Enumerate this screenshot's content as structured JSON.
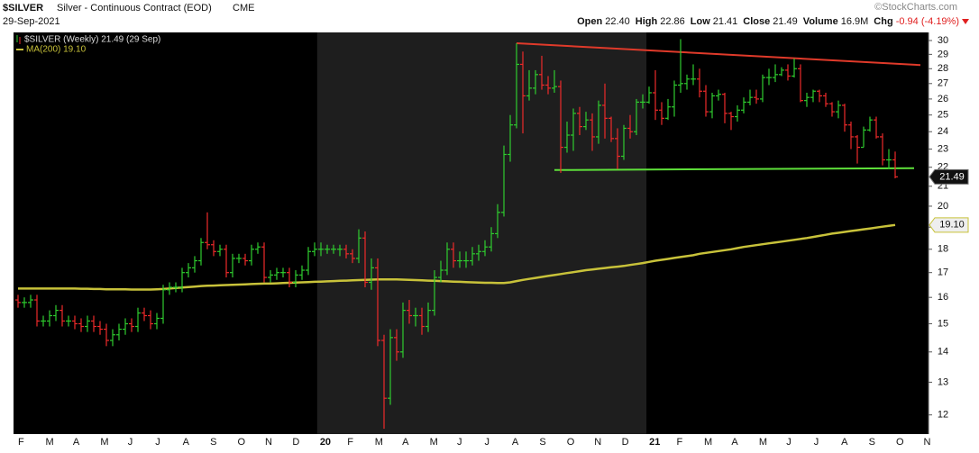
{
  "chart_data": {
    "type": "ohlc",
    "header": {
      "symbol": "$SILVER",
      "description": "Silver - Continuous Contract (EOD)",
      "exchange": "CME",
      "date": "29-Sep-2021",
      "copyright": "©StockCharts.com",
      "quote": [
        {
          "label": "Open",
          "value": "22.40"
        },
        {
          "label": "High",
          "value": "22.86"
        },
        {
          "label": "Low",
          "value": "21.41"
        },
        {
          "label": "Close",
          "value": "21.49"
        },
        {
          "label": "Volume",
          "value": "16.9M"
        },
        {
          "label": "Chg",
          "value": "-0.94 (-4.19%)"
        }
      ]
    },
    "log_scale": true,
    "ylim": [
      11.45,
      30.6
    ],
    "yticks": [
      12,
      13,
      14,
      15,
      16,
      17,
      18,
      19,
      20,
      21,
      22,
      23,
      24,
      25,
      26,
      27,
      28,
      29,
      30
    ],
    "xtick_labels": [
      "F",
      "M",
      "A",
      "M",
      "J",
      "J",
      "A",
      "S",
      "O",
      "N",
      "D",
      "20",
      "F",
      "M",
      "A",
      "M",
      "J",
      "J",
      "A",
      "S",
      "O",
      "N",
      "D",
      "21",
      "F",
      "M",
      "A",
      "M",
      "J",
      "J",
      "A",
      "S",
      "O",
      "N"
    ],
    "series": [
      {
        "name": "$SILVER (Weekly) 21.49 (29 Sep)",
        "up_color": "#2ecc2e",
        "down_color": "#ee2a2a",
        "open": [
          15.9,
          15.8,
          15.8,
          15.9,
          15.1,
          15.1,
          15.3,
          15.5,
          15.1,
          15.1,
          15.0,
          14.9,
          15.1,
          14.9,
          14.8,
          14.4,
          14.6,
          14.8,
          15.0,
          14.9,
          15.4,
          15.3,
          15.0,
          15.2,
          16.3,
          16.4,
          16.4,
          17.0,
          17.2,
          17.5,
          18.3,
          18.2,
          17.9,
          18.0,
          17.0,
          17.6,
          17.6,
          17.5,
          18.0,
          18.1,
          16.8,
          16.9,
          17.0,
          17.0,
          16.6,
          16.9,
          17.1,
          17.9,
          18.0,
          18.0,
          18.0,
          18.0,
          18.0,
          17.8,
          17.6,
          18.5,
          16.6,
          17.2,
          14.4,
          12.5,
          14.5,
          14.0,
          15.5,
          15.3,
          15.3,
          14.9,
          15.5,
          16.8,
          17.1,
          18.0,
          17.5,
          17.5,
          17.5,
          17.8,
          17.9,
          18.1,
          18.7,
          19.7,
          22.7,
          24.4,
          28.3,
          26.2,
          26.7,
          27.6,
          26.9,
          26.7,
          26.8,
          23.1,
          23.8,
          25.1,
          24.3,
          24.7,
          23.7,
          25.6,
          24.8,
          23.6,
          22.6,
          24.2,
          24.0,
          25.8,
          25.8,
          26.4,
          25.3,
          24.8,
          25.5,
          26.9,
          27.0,
          27.3,
          27.3,
          26.5,
          25.2,
          26.2,
          26.3,
          25.1,
          24.9,
          25.3,
          25.8,
          26.1,
          26.0,
          27.4,
          27.4,
          27.6,
          27.9,
          27.5,
          28.0,
          25.9,
          26.1,
          26.5,
          26.2,
          25.7,
          25.2,
          25.6,
          24.4,
          23.7,
          23.1,
          24.1,
          24.7,
          23.7,
          22.4,
          22.4
        ],
        "high": [
          16.1,
          16.0,
          16.1,
          16.1,
          15.3,
          15.5,
          15.7,
          15.7,
          15.3,
          15.3,
          15.2,
          15.3,
          15.3,
          15.1,
          15.0,
          14.8,
          15.0,
          15.2,
          15.2,
          15.6,
          15.6,
          15.5,
          15.4,
          16.5,
          16.6,
          16.6,
          17.2,
          17.4,
          17.7,
          18.5,
          19.7,
          18.4,
          18.2,
          18.2,
          17.8,
          17.8,
          17.8,
          18.2,
          18.3,
          18.3,
          17.1,
          17.2,
          17.2,
          17.2,
          17.1,
          17.3,
          18.1,
          18.3,
          18.3,
          18.2,
          18.2,
          18.2,
          18.2,
          18.0,
          18.9,
          18.8,
          17.6,
          17.6,
          14.6,
          14.8,
          14.8,
          15.8,
          15.9,
          15.6,
          15.6,
          15.8,
          17.1,
          17.5,
          18.3,
          18.3,
          17.9,
          17.9,
          18.1,
          18.2,
          18.4,
          19.0,
          20.1,
          23.2,
          25.0,
          29.8,
          29.2,
          27.9,
          27.9,
          28.9,
          27.5,
          27.9,
          27.2,
          24.6,
          25.4,
          25.5,
          25.2,
          25.1,
          25.9,
          27.0,
          24.9,
          24.2,
          24.4,
          25.0,
          26.0,
          26.3,
          26.8,
          27.9,
          25.8,
          26.0,
          27.2,
          30.1,
          27.6,
          28.3,
          28.0,
          26.9,
          26.4,
          26.6,
          26.4,
          25.2,
          25.6,
          26.1,
          26.6,
          26.6,
          27.6,
          28.0,
          28.3,
          28.1,
          28.3,
          28.7,
          28.3,
          26.4,
          26.6,
          26.6,
          26.4,
          25.8,
          25.9,
          25.7,
          24.6,
          23.8,
          24.3,
          24.9,
          24.9,
          23.9,
          23.0,
          22.86
        ],
        "low": [
          15.6,
          15.6,
          15.6,
          14.9,
          14.9,
          14.9,
          15.1,
          14.9,
          14.9,
          14.8,
          14.7,
          14.7,
          14.7,
          14.6,
          14.2,
          14.2,
          14.4,
          14.6,
          14.7,
          14.7,
          15.1,
          14.8,
          14.8,
          15.0,
          16.1,
          16.2,
          16.2,
          16.8,
          17.0,
          17.3,
          18.0,
          17.7,
          17.7,
          16.8,
          16.8,
          17.4,
          17.3,
          17.3,
          17.8,
          16.6,
          16.6,
          16.7,
          16.8,
          16.4,
          16.4,
          16.7,
          16.9,
          17.7,
          17.7,
          17.8,
          17.8,
          17.7,
          17.6,
          17.4,
          17.4,
          16.4,
          16.3,
          14.2,
          11.6,
          12.3,
          13.7,
          13.8,
          15.0,
          14.9,
          14.6,
          14.7,
          15.3,
          16.6,
          16.9,
          17.2,
          17.2,
          17.2,
          17.3,
          17.5,
          17.7,
          17.9,
          18.5,
          19.5,
          22.3,
          24.2,
          23.9,
          25.9,
          26.3,
          26.6,
          26.3,
          26.4,
          21.7,
          22.8,
          22.9,
          23.8,
          24.1,
          22.9,
          23.3,
          23.6,
          23.4,
          21.9,
          22.4,
          23.6,
          23.8,
          25.4,
          25.7,
          24.7,
          24.4,
          24.7,
          24.9,
          26.4,
          26.6,
          26.9,
          26.1,
          24.9,
          24.8,
          25.9,
          24.5,
          24.1,
          24.6,
          25.1,
          25.6,
          25.7,
          25.8,
          26.9,
          27.1,
          27.5,
          27.2,
          27.4,
          25.8,
          25.5,
          25.8,
          25.8,
          25.5,
          24.9,
          24.8,
          24.0,
          23.0,
          22.2,
          23.1,
          24.0,
          23.6,
          22.1,
          21.9,
          21.41
        ],
        "close": [
          15.8,
          15.8,
          15.9,
          15.1,
          15.1,
          15.3,
          15.5,
          15.1,
          15.1,
          15.0,
          14.9,
          15.1,
          14.9,
          14.8,
          14.4,
          14.6,
          14.8,
          15.0,
          14.9,
          15.4,
          15.3,
          15.0,
          15.2,
          16.3,
          16.4,
          16.4,
          17.0,
          17.2,
          17.5,
          18.3,
          18.2,
          17.9,
          18.0,
          17.0,
          17.6,
          17.6,
          17.5,
          18.0,
          18.1,
          16.8,
          16.9,
          17.0,
          17.0,
          16.6,
          16.9,
          17.1,
          17.9,
          18.0,
          18.0,
          18.0,
          18.0,
          18.0,
          17.8,
          17.6,
          18.5,
          16.6,
          17.2,
          14.4,
          12.5,
          14.5,
          14.0,
          15.5,
          15.3,
          15.3,
          14.9,
          15.5,
          16.8,
          17.1,
          18.0,
          17.5,
          17.5,
          17.5,
          17.8,
          17.9,
          18.1,
          18.7,
          19.7,
          22.7,
          24.4,
          28.3,
          26.2,
          26.7,
          27.6,
          26.9,
          26.7,
          26.8,
          23.1,
          23.8,
          25.1,
          24.3,
          24.7,
          23.7,
          25.6,
          24.8,
          23.6,
          22.6,
          24.2,
          24.0,
          25.8,
          25.8,
          26.4,
          25.3,
          24.8,
          25.5,
          26.9,
          27.0,
          27.3,
          27.3,
          26.5,
          25.2,
          26.2,
          26.3,
          25.1,
          24.9,
          25.3,
          25.8,
          26.1,
          26.0,
          27.4,
          27.4,
          27.6,
          27.9,
          27.5,
          28.0,
          25.9,
          26.1,
          26.5,
          26.2,
          25.7,
          25.2,
          25.6,
          24.4,
          23.7,
          23.1,
          24.1,
          24.7,
          23.7,
          22.4,
          22.4,
          21.49
        ]
      },
      {
        "name": "MA(200) 19.10",
        "color": "#c8c23a",
        "last_value_label": "19.10",
        "values": [
          16.35,
          16.35,
          16.35,
          16.35,
          16.35,
          16.35,
          16.35,
          16.35,
          16.35,
          16.35,
          16.34,
          16.34,
          16.33,
          16.33,
          16.32,
          16.32,
          16.32,
          16.32,
          16.31,
          16.31,
          16.31,
          16.31,
          16.32,
          16.33,
          16.35,
          16.37,
          16.39,
          16.41,
          16.43,
          16.45,
          16.46,
          16.47,
          16.48,
          16.49,
          16.5,
          16.51,
          16.52,
          16.53,
          16.54,
          16.55,
          16.55,
          16.56,
          16.57,
          16.58,
          16.59,
          16.6,
          16.61,
          16.62,
          16.63,
          16.64,
          16.65,
          16.66,
          16.67,
          16.68,
          16.69,
          16.7,
          16.71,
          16.72,
          16.72,
          16.72,
          16.72,
          16.71,
          16.7,
          16.69,
          16.68,
          16.67,
          16.66,
          16.65,
          16.64,
          16.63,
          16.62,
          16.61,
          16.6,
          16.59,
          16.58,
          16.58,
          16.57,
          16.57,
          16.6,
          16.65,
          16.7,
          16.74,
          16.78,
          16.82,
          16.86,
          16.9,
          16.94,
          16.98,
          17.02,
          17.06,
          17.1,
          17.13,
          17.16,
          17.19,
          17.22,
          17.25,
          17.28,
          17.32,
          17.36,
          17.4,
          17.45,
          17.5,
          17.54,
          17.58,
          17.62,
          17.66,
          17.7,
          17.74,
          17.8,
          17.84,
          17.88,
          17.92,
          17.96,
          18.0,
          18.05,
          18.1,
          18.14,
          18.18,
          18.22,
          18.26,
          18.3,
          18.34,
          18.38,
          18.42,
          18.46,
          18.5,
          18.55,
          18.6,
          18.65,
          18.7,
          18.74,
          18.78,
          18.82,
          18.86,
          18.9,
          18.94,
          18.98,
          19.02,
          19.06,
          19.1
        ]
      }
    ],
    "trendlines": [
      {
        "color": "#e03a2a",
        "x": [
          79,
          143
        ],
        "y": [
          29.8,
          28.25
        ]
      },
      {
        "color": "#5ee03a",
        "x": [
          85,
          142
        ],
        "y": [
          21.85,
          21.95
        ]
      }
    ]
  }
}
